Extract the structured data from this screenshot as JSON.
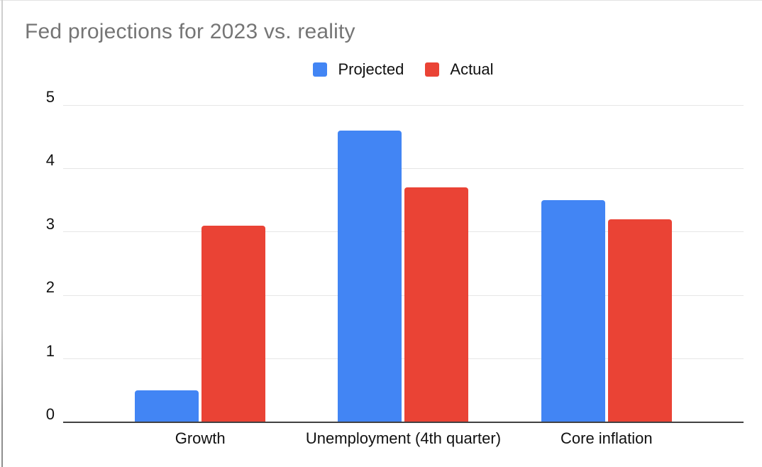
{
  "title": {
    "text": "Fed projections for 2023 vs. reality",
    "color": "#757575"
  },
  "legend": {
    "items": [
      {
        "label": "Projected",
        "color": "#4285F4"
      },
      {
        "label": "Actual",
        "color": "#EA4335"
      }
    ]
  },
  "chart_data": {
    "type": "bar",
    "title": "Fed projections for 2023 vs. reality",
    "categories": [
      "Growth",
      "Unemployment (4th quarter)",
      "Core inflation"
    ],
    "series": [
      {
        "name": "Projected",
        "color": "#4285F4",
        "values": [
          0.5,
          4.6,
          3.5
        ]
      },
      {
        "name": "Actual",
        "color": "#EA4335",
        "values": [
          3.1,
          3.7,
          3.2
        ]
      }
    ],
    "xlabel": "",
    "ylabel": "",
    "ylim": [
      0,
      5
    ],
    "yticks": [
      0,
      1,
      2,
      3,
      4,
      5
    ],
    "grid": true,
    "gridline_color": "#e6e6e6",
    "axis_line_color": "#424242",
    "legend_position": "top-center"
  }
}
